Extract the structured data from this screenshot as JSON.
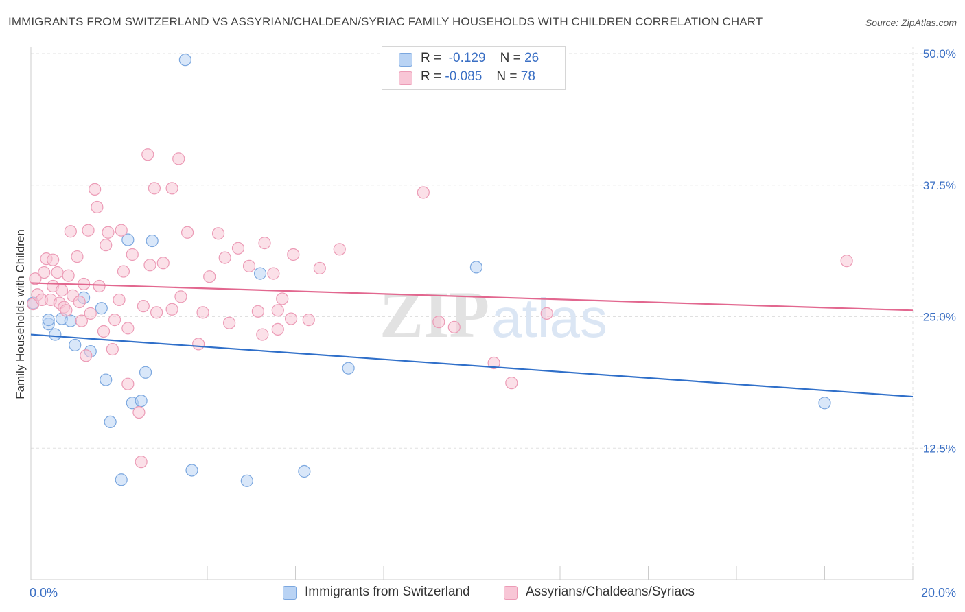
{
  "title": "IMMIGRANTS FROM SWITZERLAND VS ASSYRIAN/CHALDEAN/SYRIAC FAMILY HOUSEHOLDS WITH CHILDREN CORRELATION CHART",
  "source": "Source: ZipAtlas.com",
  "watermark": {
    "zip": "ZIP",
    "atlas": "atlas"
  },
  "legend": {
    "r_label": "R =",
    "n_label": "N =",
    "series1": {
      "r": "-0.129",
      "n": "26"
    },
    "series2": {
      "r": "-0.085",
      "n": "78"
    }
  },
  "colors": {
    "blue_fill": "#b9d3f4",
    "blue_stroke": "#7ba7df",
    "blue_line": "#2f6fc9",
    "pink_fill": "#f8c6d6",
    "pink_stroke": "#ec9bb6",
    "pink_line": "#e2678f",
    "tick_label": "#3a6fc4",
    "grid": "#e0e0e0"
  },
  "chart_data": {
    "type": "scatter",
    "title": "IMMIGRANTS FROM SWITZERLAND VS ASSYRIAN/CHALDEAN/SYRIAC FAMILY HOUSEHOLDS WITH CHILDREN CORRELATION CHART",
    "xlabel": "",
    "ylabel": "Family Households with Children",
    "xlim": [
      0,
      20
    ],
    "ylim": [
      0,
      50
    ],
    "x_tick_labels": {
      "0": "0.0%",
      "20": "20.0%"
    },
    "y_ticks": [
      12.5,
      25.0,
      37.5,
      50.0
    ],
    "y_tick_labels": [
      "12.5%",
      "25.0%",
      "37.5%",
      "50.0%"
    ],
    "grid": true,
    "series": [
      {
        "name": "Immigrants from Switzerland",
        "color_key": "blue",
        "trend": {
          "x": [
            0,
            20
          ],
          "y": [
            23.3,
            17.4
          ]
        },
        "points": [
          {
            "x": 0.05,
            "y": 26.3
          },
          {
            "x": 0.4,
            "y": 24.3
          },
          {
            "x": 0.4,
            "y": 24.7
          },
          {
            "x": 0.55,
            "y": 23.3
          },
          {
            "x": 0.7,
            "y": 24.8
          },
          {
            "x": 0.9,
            "y": 24.6
          },
          {
            "x": 1.0,
            "y": 22.3
          },
          {
            "x": 1.2,
            "y": 26.8
          },
          {
            "x": 1.35,
            "y": 21.7
          },
          {
            "x": 1.6,
            "y": 25.8
          },
          {
            "x": 1.7,
            "y": 19.0
          },
          {
            "x": 1.8,
            "y": 15.0
          },
          {
            "x": 2.05,
            "y": 9.5
          },
          {
            "x": 2.2,
            "y": 32.3
          },
          {
            "x": 2.3,
            "y": 16.8
          },
          {
            "x": 2.5,
            "y": 17.0
          },
          {
            "x": 2.6,
            "y": 19.7
          },
          {
            "x": 2.75,
            "y": 32.2
          },
          {
            "x": 3.5,
            "y": 49.4
          },
          {
            "x": 3.65,
            "y": 10.4
          },
          {
            "x": 4.9,
            "y": 9.4
          },
          {
            "x": 5.2,
            "y": 29.1
          },
          {
            "x": 6.2,
            "y": 10.3
          },
          {
            "x": 7.2,
            "y": 20.1
          },
          {
            "x": 10.1,
            "y": 29.7
          },
          {
            "x": 18.0,
            "y": 16.8
          }
        ]
      },
      {
        "name": "Assyrians/Chaldeans/Syriacs",
        "color_key": "pink",
        "trend": {
          "x": [
            0,
            20
          ],
          "y": [
            28.2,
            25.6
          ]
        },
        "points": [
          {
            "x": 0.05,
            "y": 26.2
          },
          {
            "x": 0.1,
            "y": 28.6
          },
          {
            "x": 0.15,
            "y": 27.1
          },
          {
            "x": 0.25,
            "y": 26.6
          },
          {
            "x": 0.3,
            "y": 29.2
          },
          {
            "x": 0.35,
            "y": 30.5
          },
          {
            "x": 0.45,
            "y": 26.6
          },
          {
            "x": 0.5,
            "y": 30.4
          },
          {
            "x": 0.5,
            "y": 27.9
          },
          {
            "x": 0.6,
            "y": 29.2
          },
          {
            "x": 0.65,
            "y": 26.3
          },
          {
            "x": 0.7,
            "y": 27.5
          },
          {
            "x": 0.75,
            "y": 25.9
          },
          {
            "x": 0.8,
            "y": 25.6
          },
          {
            "x": 0.85,
            "y": 28.9
          },
          {
            "x": 0.9,
            "y": 33.1
          },
          {
            "x": 0.95,
            "y": 27.0
          },
          {
            "x": 1.05,
            "y": 30.7
          },
          {
            "x": 1.1,
            "y": 26.4
          },
          {
            "x": 1.15,
            "y": 24.6
          },
          {
            "x": 1.2,
            "y": 28.1
          },
          {
            "x": 1.25,
            "y": 21.3
          },
          {
            "x": 1.3,
            "y": 33.2
          },
          {
            "x": 1.35,
            "y": 25.3
          },
          {
            "x": 1.45,
            "y": 37.1
          },
          {
            "x": 1.5,
            "y": 35.4
          },
          {
            "x": 1.55,
            "y": 27.9
          },
          {
            "x": 1.65,
            "y": 23.6
          },
          {
            "x": 1.7,
            "y": 31.8
          },
          {
            "x": 1.75,
            "y": 33.0
          },
          {
            "x": 1.85,
            "y": 21.9
          },
          {
            "x": 1.9,
            "y": 24.7
          },
          {
            "x": 2.0,
            "y": 26.6
          },
          {
            "x": 2.05,
            "y": 33.2
          },
          {
            "x": 2.1,
            "y": 29.3
          },
          {
            "x": 2.2,
            "y": 18.6
          },
          {
            "x": 2.2,
            "y": 23.9
          },
          {
            "x": 2.3,
            "y": 30.9
          },
          {
            "x": 2.45,
            "y": 15.9
          },
          {
            "x": 2.5,
            "y": 11.2
          },
          {
            "x": 2.55,
            "y": 26.0
          },
          {
            "x": 2.65,
            "y": 40.4
          },
          {
            "x": 2.7,
            "y": 29.9
          },
          {
            "x": 2.8,
            "y": 37.2
          },
          {
            "x": 2.85,
            "y": 25.4
          },
          {
            "x": 3.0,
            "y": 30.1
          },
          {
            "x": 3.2,
            "y": 25.7
          },
          {
            "x": 3.2,
            "y": 37.2
          },
          {
            "x": 3.35,
            "y": 40.0
          },
          {
            "x": 3.4,
            "y": 26.9
          },
          {
            "x": 3.55,
            "y": 33.0
          },
          {
            "x": 3.8,
            "y": 22.4
          },
          {
            "x": 3.9,
            "y": 25.4
          },
          {
            "x": 4.05,
            "y": 28.8
          },
          {
            "x": 4.25,
            "y": 32.9
          },
          {
            "x": 4.4,
            "y": 30.6
          },
          {
            "x": 4.5,
            "y": 24.4
          },
          {
            "x": 4.7,
            "y": 31.5
          },
          {
            "x": 4.95,
            "y": 29.8
          },
          {
            "x": 5.15,
            "y": 25.5
          },
          {
            "x": 5.25,
            "y": 23.3
          },
          {
            "x": 5.3,
            "y": 32.0
          },
          {
            "x": 5.5,
            "y": 29.1
          },
          {
            "x": 5.6,
            "y": 25.6
          },
          {
            "x": 5.6,
            "y": 23.8
          },
          {
            "x": 5.7,
            "y": 26.7
          },
          {
            "x": 5.9,
            "y": 24.8
          },
          {
            "x": 5.95,
            "y": 30.9
          },
          {
            "x": 6.3,
            "y": 24.7
          },
          {
            "x": 6.55,
            "y": 29.6
          },
          {
            "x": 7.0,
            "y": 31.4
          },
          {
            "x": 8.9,
            "y": 36.8
          },
          {
            "x": 9.25,
            "y": 24.5
          },
          {
            "x": 9.6,
            "y": 24.0
          },
          {
            "x": 10.5,
            "y": 20.6
          },
          {
            "x": 10.9,
            "y": 18.7
          },
          {
            "x": 11.7,
            "y": 25.3
          },
          {
            "x": 18.5,
            "y": 30.3
          }
        ]
      }
    ]
  }
}
